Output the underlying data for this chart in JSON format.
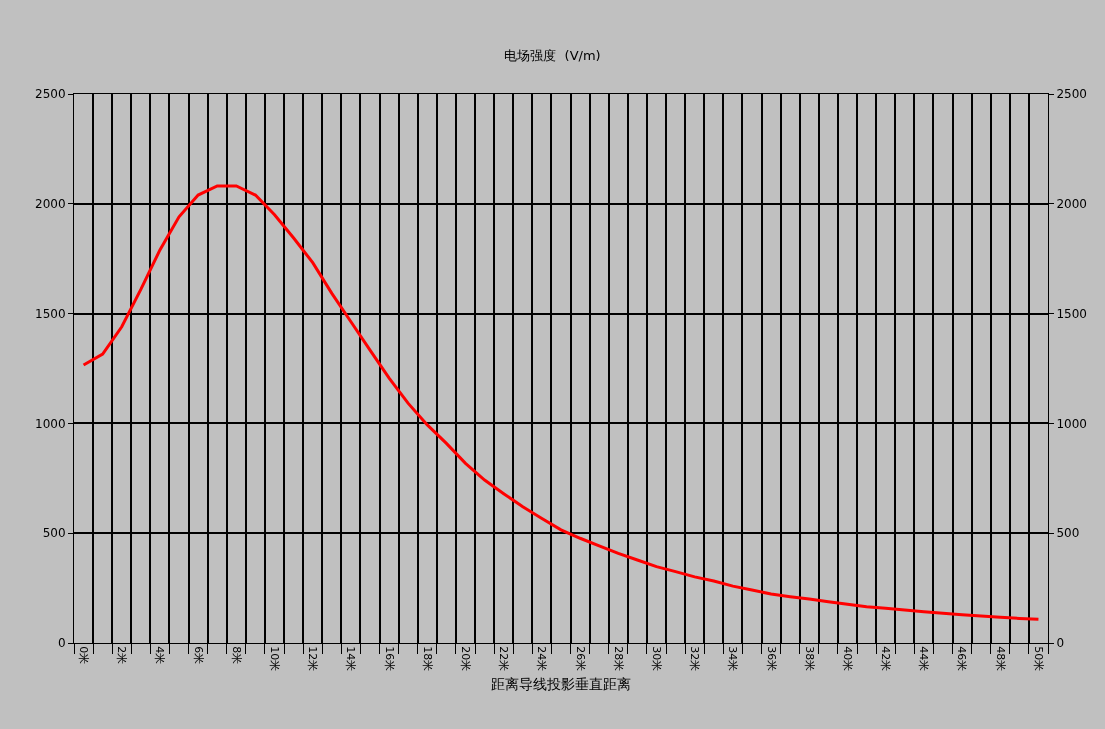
{
  "chart_data": {
    "type": "line",
    "title": "电场强度  (V/m)",
    "xlabel": "距离导线投影垂直距离",
    "categories": [
      "0米",
      null,
      "2米",
      null,
      "4米",
      null,
      "6米",
      null,
      "8米",
      null,
      "10米",
      null,
      "12米",
      null,
      "14米",
      null,
      "16米",
      null,
      "18米",
      null,
      "20米",
      null,
      "22米",
      null,
      "24米",
      null,
      "26米",
      null,
      "28米",
      null,
      "30米",
      null,
      "32米",
      null,
      "34米",
      null,
      "36米",
      null,
      "38米",
      null,
      "40米",
      null,
      "42米",
      null,
      "44米",
      null,
      "46米",
      null,
      "48米",
      null,
      "50米"
    ],
    "series": [
      {
        "color": "#ff0000",
        "values": [
          1266,
          1316,
          1440,
          1610,
          1790,
          1941,
          2040,
          2081,
          2081,
          2040,
          1950,
          1844,
          1732,
          1592,
          1463,
          1334,
          1206,
          1091,
          993,
          909,
          818,
          742,
          680,
          620,
          567,
          515,
          477,
          442,
          408,
          378,
          348,
          325,
          301,
          282,
          259,
          241,
          223,
          211,
          200,
          188,
          176,
          165,
          158,
          150,
          142,
          135,
          129,
          123,
          117,
          112,
          108
        ]
      }
    ],
    "ylim": [
      0,
      2500
    ],
    "yticks": [
      0,
      500,
      1000,
      1500,
      2000,
      2500
    ],
    "y2lim": [
      0,
      2500
    ],
    "y2ticks": [
      0,
      500,
      1000,
      1500,
      2000,
      2500
    ],
    "grid": true,
    "marker": "none",
    "line_style": "solid"
  }
}
